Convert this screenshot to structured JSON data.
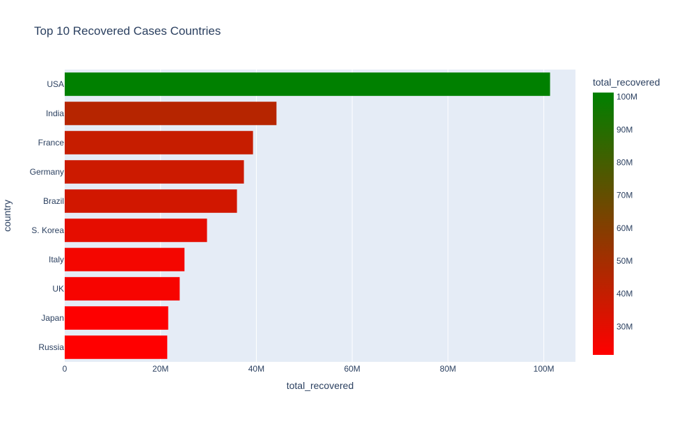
{
  "chart_data": {
    "type": "bar",
    "orientation": "horizontal",
    "title": "Top 10 Recovered Cases Countries",
    "xlabel": "total_recovered",
    "ylabel": "country",
    "categories": [
      "USA",
      "India",
      "France",
      "Germany",
      "Brazil",
      "S. Korea",
      "Italy",
      "UK",
      "Japan",
      "Russia"
    ],
    "values": [
      101300000,
      44200000,
      39300000,
      37400000,
      35950000,
      29700000,
      25000000,
      24000000,
      21600000,
      21400000
    ],
    "xlim": [
      0,
      106600000
    ],
    "xticks": [
      0,
      20000000,
      40000000,
      60000000,
      80000000,
      100000000
    ],
    "xtick_labels": [
      "0",
      "20M",
      "40M",
      "60M",
      "80M",
      "100M"
    ],
    "colorbar": {
      "title": "total_recovered",
      "range": [
        21400000,
        101300000
      ],
      "ticks": [
        30000000,
        40000000,
        50000000,
        60000000,
        70000000,
        80000000,
        90000000,
        100000000
      ],
      "tick_labels": [
        "30M",
        "40M",
        "50M",
        "60M",
        "70M",
        "80M",
        "90M",
        "100M"
      ],
      "colorscale": [
        "#ff0000",
        "#008000"
      ]
    },
    "grid": true,
    "legend": "colorbar-right",
    "colors": {
      "plot_background": "#e5ecf6",
      "grid": "#ffffff",
      "text": "#2a3f5f"
    }
  }
}
